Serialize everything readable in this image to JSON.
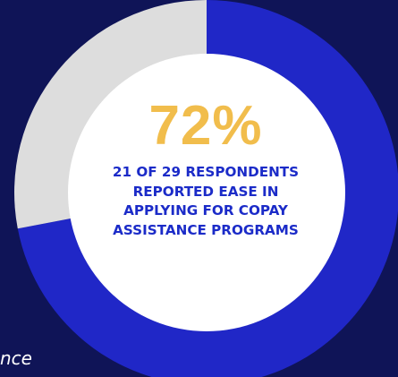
{
  "chart_data": {
    "type": "pie",
    "variant": "donut",
    "title": "72%",
    "subtitle": "21 OF 29 RESPONDENTS REPORTED EASE IN APPLYING FOR COPAY ASSISTANCE PROGRAMS",
    "values": [
      72,
      28
    ],
    "categories": [
      "",
      ""
    ],
    "colors": [
      "#2027c7",
      "#dddddd"
    ],
    "center_color": "#ffffff"
  },
  "footnote": "nce",
  "colors": {
    "background": "#0f1457",
    "percent": "#f1bd4c",
    "description": "#1b2bc8"
  }
}
